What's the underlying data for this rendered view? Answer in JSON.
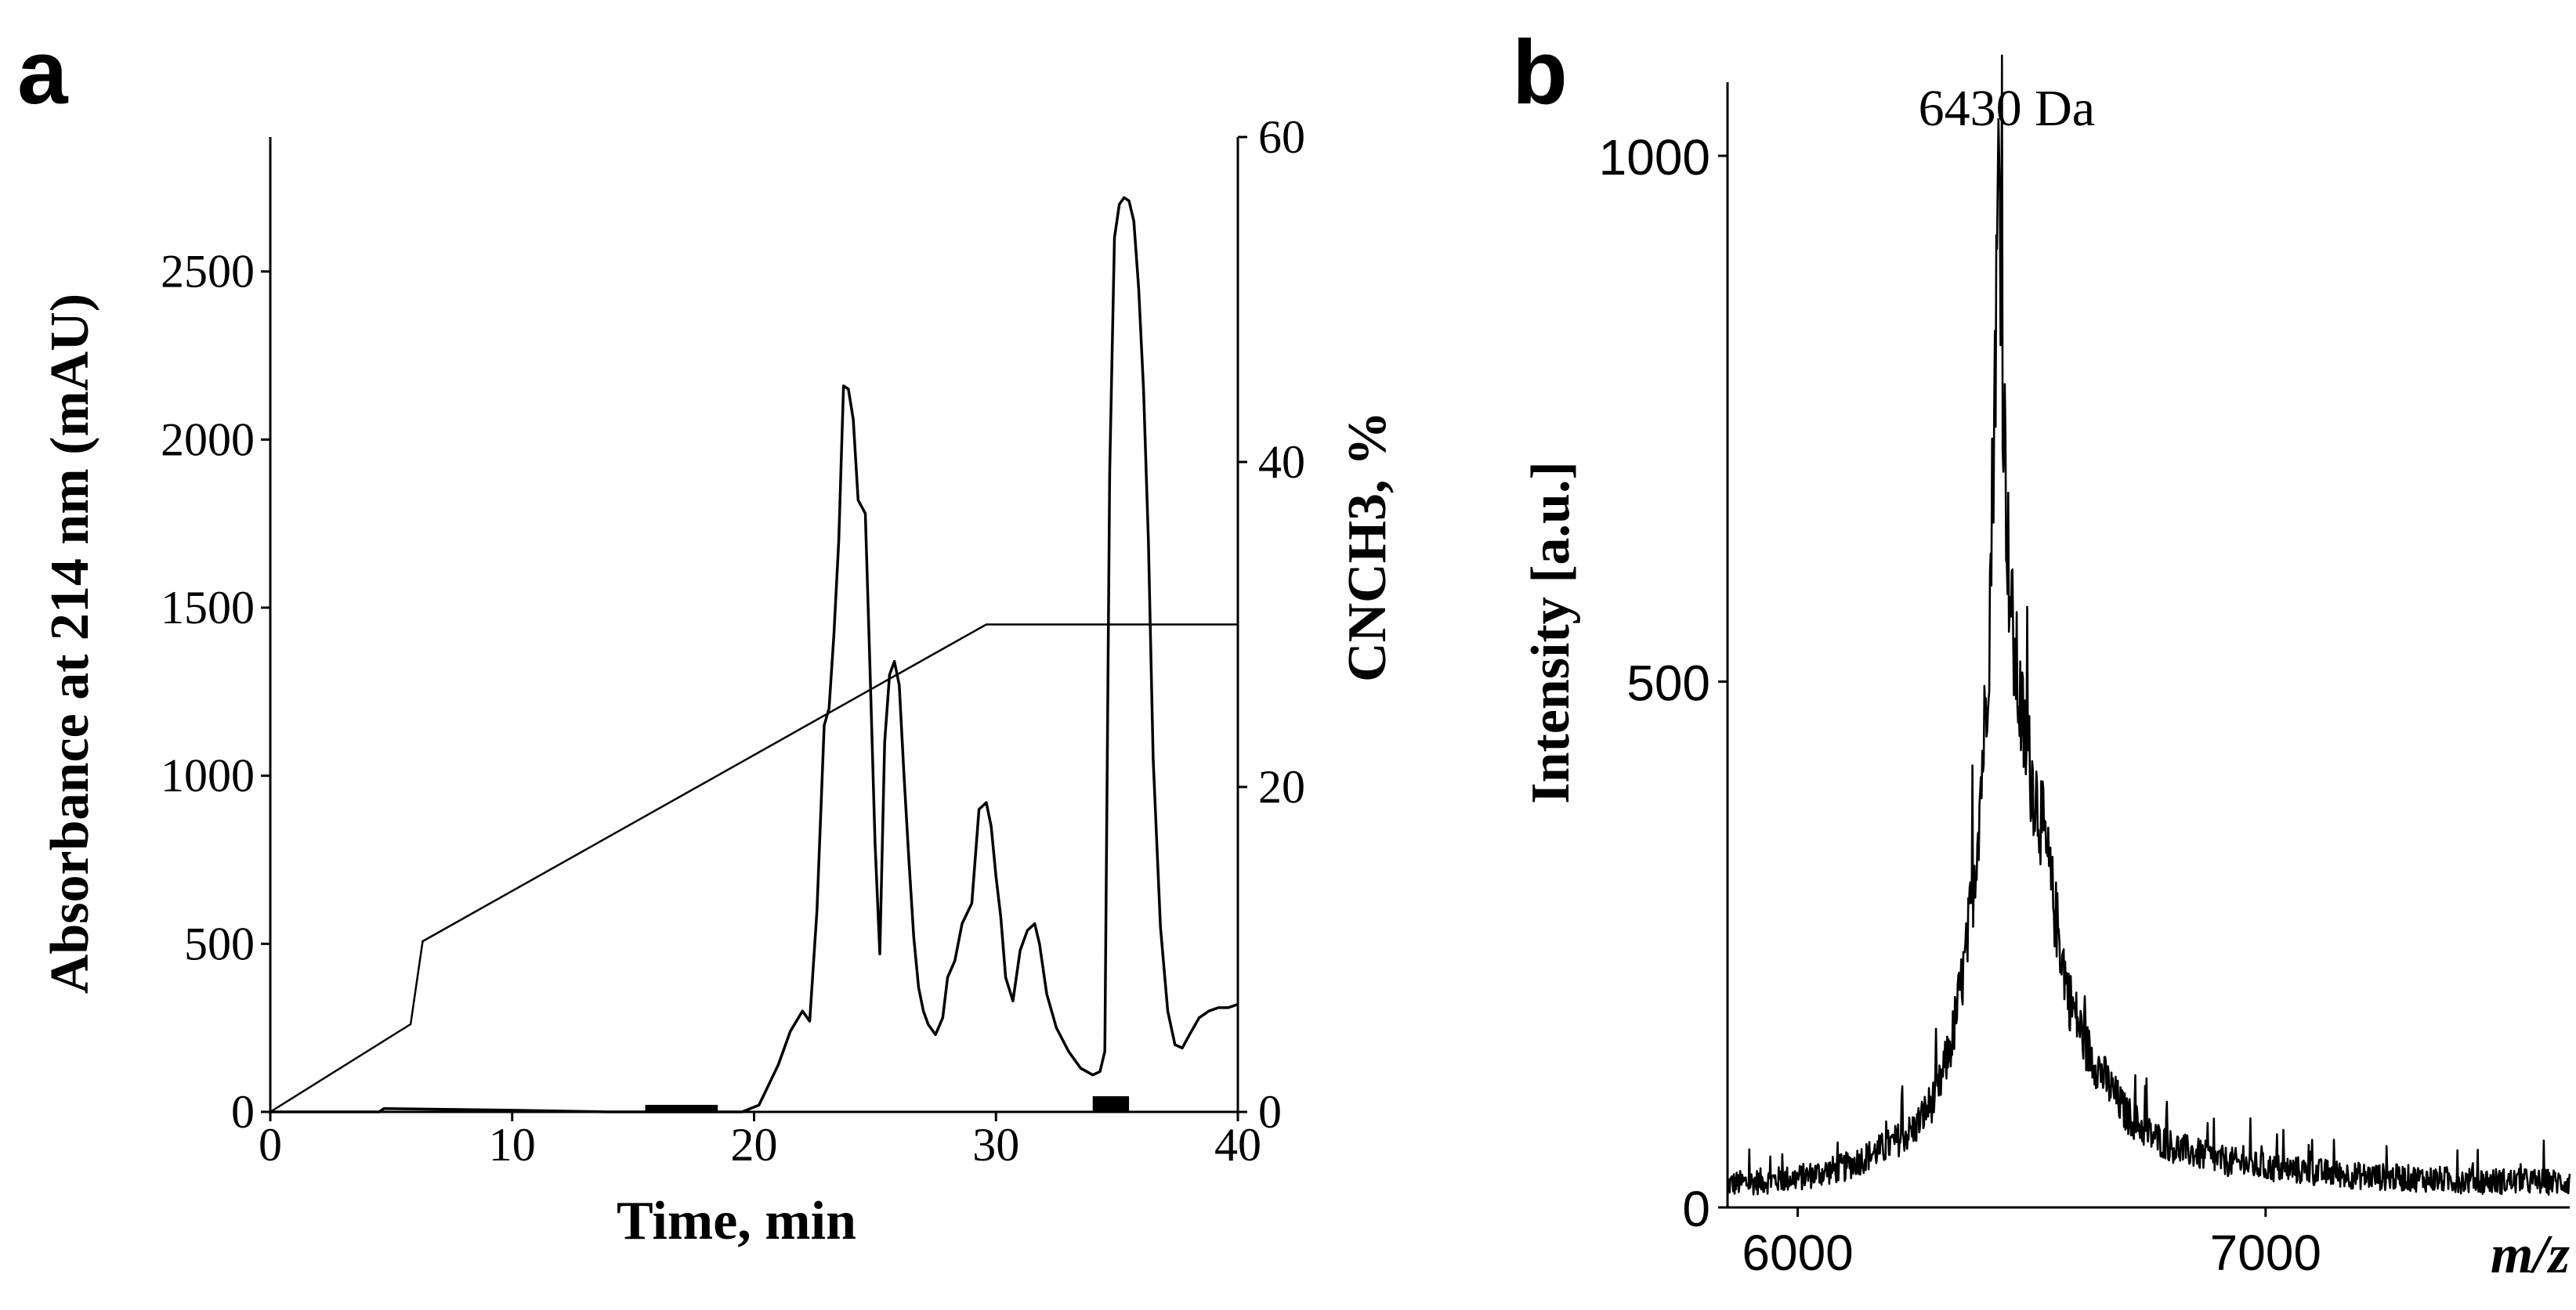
{
  "figure": {
    "panels": [
      {
        "letter": "a"
      },
      {
        "letter": "b"
      }
    ]
  },
  "chart_data": [
    {
      "panel": "a",
      "type": "line",
      "xlabel": "Time, min",
      "ylabel": "Absorbance at 214 nm (mAU)",
      "y2label": "CNCH3, %",
      "xlim": [
        0,
        40
      ],
      "ylim": [
        0,
        2900
      ],
      "y2lim": [
        0,
        60
      ],
      "xticks": [
        0,
        10,
        20,
        30,
        40
      ],
      "yticks": [
        0,
        500,
        1000,
        1500,
        2000,
        2500
      ],
      "y2ticks": [
        0,
        20,
        40,
        60
      ],
      "grid": false,
      "series": [
        {
          "x": [
            0,
            4.5,
            4.7,
            10,
            14,
            18,
            19.5,
            20.2,
            21,
            21.5,
            22,
            22.3,
            22.6,
            22.9,
            23.1,
            23.3,
            23.5,
            23.7,
            23.9,
            24.1,
            24.3,
            24.6,
            24.8,
            25,
            25.2,
            25.4,
            25.6,
            25.8,
            26,
            26.2,
            26.4,
            26.6,
            26.8,
            27,
            27.2,
            27.5,
            27.8,
            28,
            28.3,
            28.6,
            29,
            29.3,
            29.6,
            29.8,
            30,
            30.2,
            30.4,
            30.7,
            31,
            31.3,
            31.6,
            31.8,
            32.1,
            32.5,
            33,
            33.5,
            34,
            34.3,
            34.5,
            34.7,
            34.9,
            35.1,
            35.3,
            35.5,
            35.7,
            35.9,
            36.1,
            36.3,
            36.5,
            36.8,
            37.1,
            37.4,
            37.7,
            38,
            38.4,
            38.8,
            39.2,
            39.6,
            40
          ],
          "values": [
            0,
            0,
            10,
            5,
            0,
            0,
            0,
            20,
            140,
            240,
            300,
            270,
            600,
            1150,
            1200,
            1420,
            1700,
            2160,
            2150,
            2060,
            1820,
            1780,
            1300,
            800,
            470,
            1100,
            1300,
            1340,
            1270,
            1000,
            750,
            520,
            370,
            300,
            260,
            230,
            280,
            400,
            450,
            560,
            620,
            900,
            920,
            850,
            700,
            580,
            400,
            330,
            480,
            540,
            560,
            500,
            350,
            250,
            180,
            130,
            110,
            120,
            180,
            1900,
            2600,
            2700,
            2720,
            2710,
            2650,
            2450,
            2150,
            1700,
            1050,
            550,
            300,
            200,
            190,
            230,
            280,
            300,
            310,
            310,
            320
          ]
        },
        {
          "axis": "y2",
          "x": [
            0,
            5.8,
            6.3,
            29.6,
            40
          ],
          "values": [
            0,
            5.4,
            10.5,
            30,
            30
          ]
        }
      ],
      "fractions": [
        {
          "x_start": 15.5,
          "x_end": 18.5
        },
        {
          "x_start": 34.0,
          "x_end": 35.5
        }
      ]
    },
    {
      "panel": "b",
      "type": "line",
      "xlabel": "m/z",
      "ylabel": "Intensity [a.u.]",
      "xlim": [
        5850,
        7650
      ],
      "ylim": [
        0,
        1070
      ],
      "xticks": [
        6000,
        7000
      ],
      "yticks": [
        0,
        500,
        1000
      ],
      "grid": false,
      "annotations": [
        {
          "text": "6430 Da",
          "x": 6430
        }
      ],
      "series": [
        {
          "x": [
            5850,
            6000,
            6100,
            6200,
            6250,
            6300,
            6330,
            6360,
            6380,
            6400,
            6410,
            6420,
            6425,
            6430,
            6435,
            6440,
            6450,
            6460,
            6480,
            6500,
            6520,
            6550,
            6580,
            6620,
            6660,
            6700,
            6750,
            6800,
            6900,
            7000,
            7100,
            7200,
            7300,
            7400,
            7500,
            7650
          ],
          "values": [
            22,
            28,
            38,
            60,
            75,
            110,
            160,
            240,
            330,
            460,
            560,
            760,
            870,
            1010,
            880,
            760,
            620,
            540,
            460,
            410,
            370,
            280,
            200,
            150,
            120,
            90,
            70,
            58,
            45,
            38,
            34,
            30,
            28,
            26,
            25,
            24
          ]
        }
      ]
    }
  ]
}
